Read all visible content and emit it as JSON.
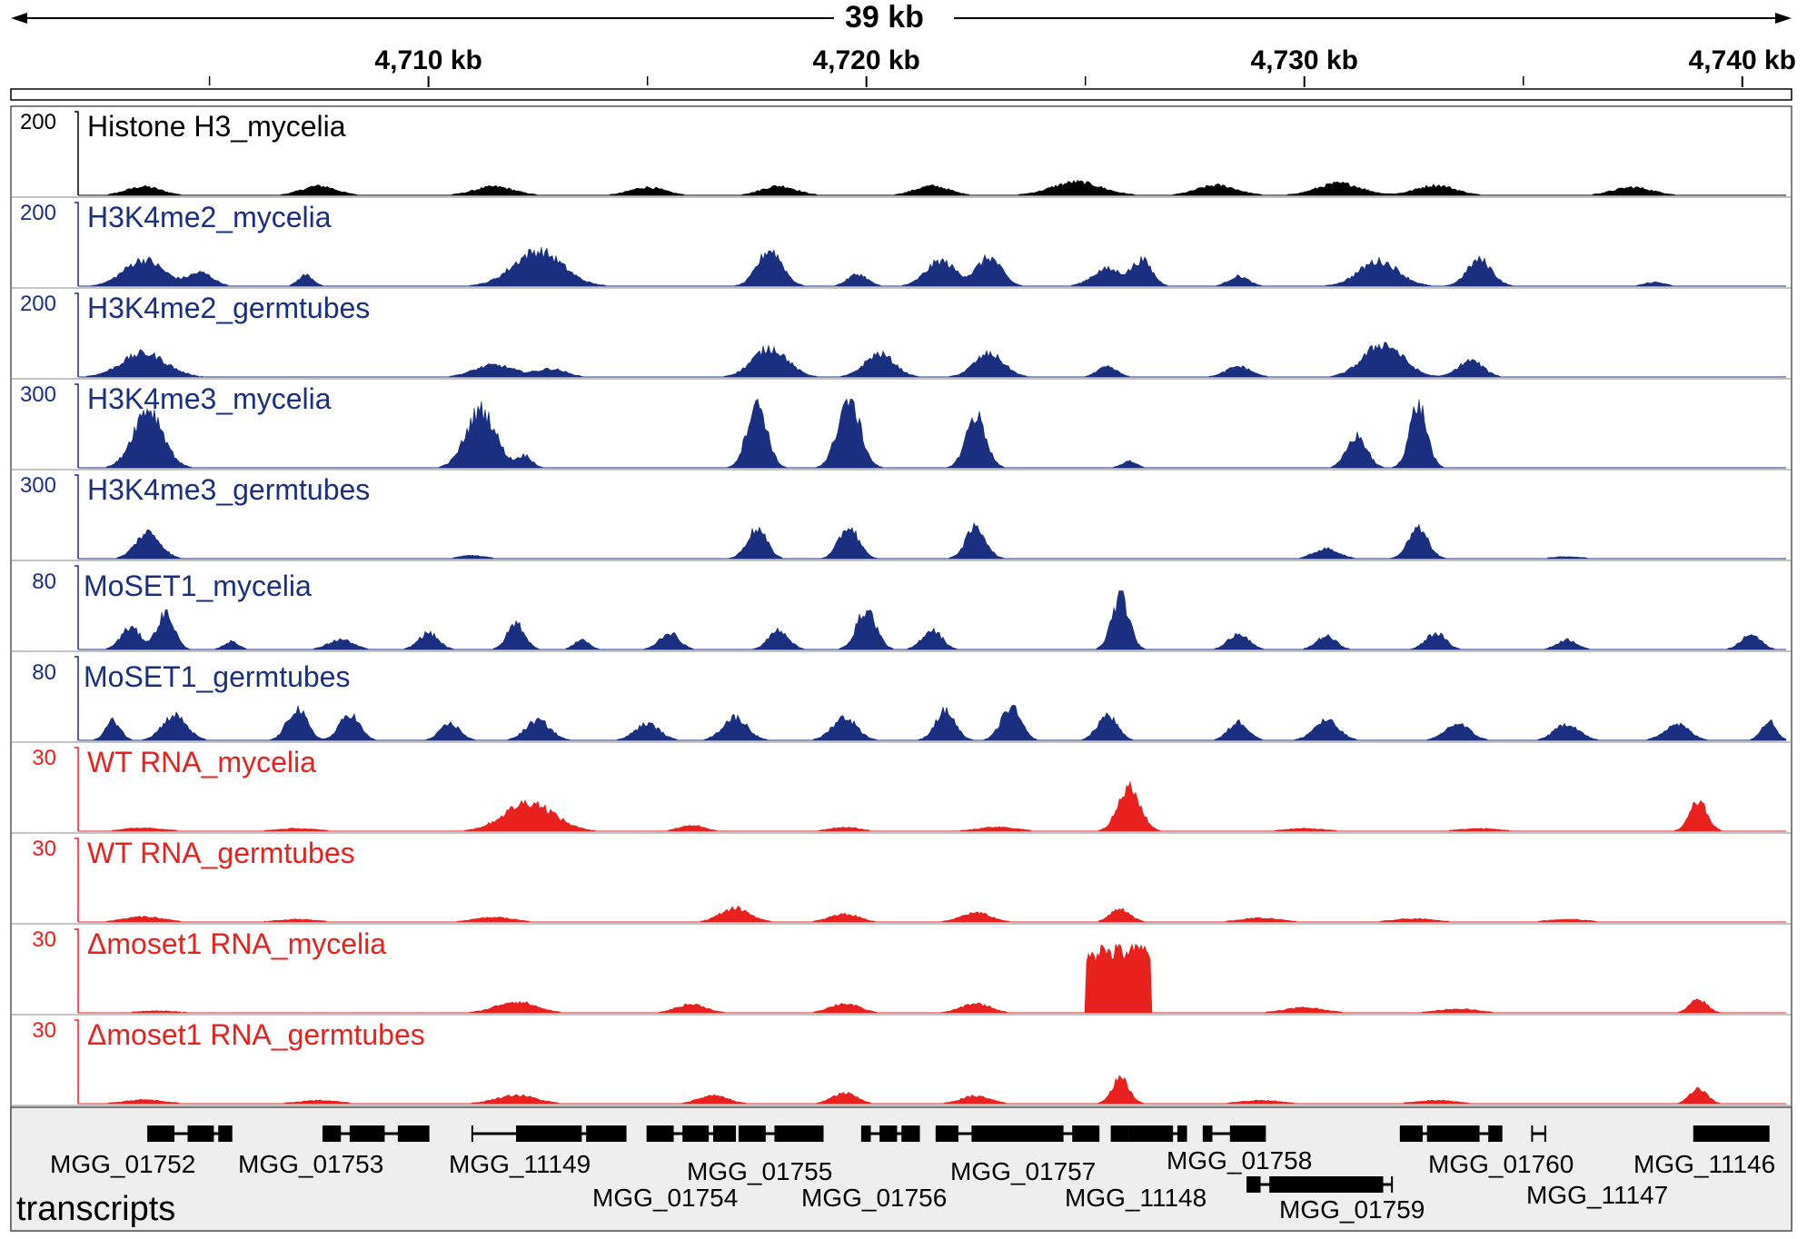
{
  "header": {
    "span_label": "39 kb",
    "ruler": {
      "start_kb": 4702,
      "end_kb": 4741,
      "labeled_ticks": [
        {
          "label": "4,710 kb",
          "pos_kb": 4710
        },
        {
          "label": "4,720 kb",
          "pos_kb": 4720
        },
        {
          "label": "4,730 kb",
          "pos_kb": 4730
        },
        {
          "label": "4,740 kb",
          "pos_kb": 4740
        }
      ],
      "minor_ticks_kb": [
        4705,
        4715,
        4725,
        4735
      ]
    }
  },
  "colors": {
    "histone": "#000000",
    "chip": "#1a2f7f",
    "rna": "#e8211f",
    "transcripts_bg": "#eeeeee",
    "gene": "#000000"
  },
  "tracks": [
    {
      "name": "Histone H3_mycelia",
      "scale": "200",
      "color_key": "histone",
      "peaks": [
        [
          4703.5,
          0.13,
          0.7
        ],
        [
          4707.5,
          0.14,
          0.7
        ],
        [
          4711.5,
          0.13,
          0.8
        ],
        [
          4715.0,
          0.12,
          0.7
        ],
        [
          4718.0,
          0.14,
          0.7
        ],
        [
          4721.5,
          0.14,
          0.7
        ],
        [
          4724.8,
          0.2,
          1.0
        ],
        [
          4728.0,
          0.15,
          0.8
        ],
        [
          4730.8,
          0.18,
          0.9
        ],
        [
          4733.0,
          0.15,
          0.8
        ],
        [
          4737.5,
          0.12,
          0.8
        ]
      ]
    },
    {
      "name": "H3K4me2_mycelia",
      "scale": "200",
      "color_key": "chip",
      "peaks": [
        [
          4703.5,
          0.4,
          0.8
        ],
        [
          4704.8,
          0.2,
          0.5
        ],
        [
          4707.2,
          0.17,
          0.3
        ],
        [
          4712.5,
          0.53,
          1.0
        ],
        [
          4717.8,
          0.55,
          0.5
        ],
        [
          4719.8,
          0.18,
          0.4
        ],
        [
          4721.7,
          0.38,
          0.6
        ],
        [
          4722.8,
          0.43,
          0.5
        ],
        [
          4725.5,
          0.26,
          0.6
        ],
        [
          4726.3,
          0.38,
          0.4
        ],
        [
          4728.5,
          0.15,
          0.4
        ],
        [
          4731.7,
          0.38,
          0.8
        ],
        [
          4734.0,
          0.4,
          0.5
        ],
        [
          4738.0,
          0.06,
          0.4
        ]
      ]
    },
    {
      "name": "H3K4me2_germtubes",
      "scale": "200",
      "color_key": "chip",
      "peaks": [
        [
          4703.5,
          0.36,
          0.9
        ],
        [
          4711.5,
          0.18,
          0.8
        ],
        [
          4712.8,
          0.12,
          0.6
        ],
        [
          4717.8,
          0.44,
          0.7
        ],
        [
          4720.3,
          0.35,
          0.6
        ],
        [
          4722.8,
          0.35,
          0.6
        ],
        [
          4725.5,
          0.15,
          0.4
        ],
        [
          4728.5,
          0.16,
          0.5
        ],
        [
          4731.8,
          0.5,
          0.8
        ],
        [
          4733.8,
          0.25,
          0.5
        ]
      ]
    },
    {
      "name": "H3K4me3_mycelia",
      "scale": "300",
      "color_key": "chip",
      "peaks": [
        [
          4703.6,
          0.9,
          0.6
        ],
        [
          4711.2,
          0.88,
          0.6
        ],
        [
          4712.2,
          0.18,
          0.3
        ],
        [
          4717.5,
          1.0,
          0.4
        ],
        [
          4719.6,
          1.05,
          0.45
        ],
        [
          4722.5,
          0.8,
          0.4
        ],
        [
          4726.0,
          0.1,
          0.3
        ],
        [
          4731.2,
          0.48,
          0.4
        ],
        [
          4732.6,
          0.96,
          0.35
        ]
      ]
    },
    {
      "name": "H3K4me3_germtubes",
      "scale": "300",
      "color_key": "chip",
      "peaks": [
        [
          4703.6,
          0.4,
          0.5
        ],
        [
          4711.0,
          0.05,
          0.5
        ],
        [
          4717.5,
          0.45,
          0.4
        ],
        [
          4719.6,
          0.48,
          0.4
        ],
        [
          4722.5,
          0.48,
          0.4
        ],
        [
          4730.5,
          0.15,
          0.5
        ],
        [
          4732.6,
          0.45,
          0.4
        ],
        [
          4736.0,
          0.03,
          0.6
        ]
      ]
    },
    {
      "name": "MoSET1_mycelia",
      "scale": "80",
      "color_key": "chip",
      "peaks": [
        [
          4703.2,
          0.33,
          0.4
        ],
        [
          4704.0,
          0.55,
          0.35
        ],
        [
          4705.5,
          0.12,
          0.3
        ],
        [
          4708.0,
          0.15,
          0.5
        ],
        [
          4710.0,
          0.25,
          0.4
        ],
        [
          4712.0,
          0.4,
          0.35
        ],
        [
          4713.5,
          0.15,
          0.3
        ],
        [
          4715.5,
          0.25,
          0.4
        ],
        [
          4718.0,
          0.3,
          0.4
        ],
        [
          4720.0,
          0.6,
          0.4
        ],
        [
          4721.5,
          0.3,
          0.4
        ],
        [
          4725.8,
          0.8,
          0.35
        ],
        [
          4728.5,
          0.25,
          0.4
        ],
        [
          4730.5,
          0.2,
          0.4
        ],
        [
          4733.0,
          0.25,
          0.4
        ],
        [
          4736.0,
          0.15,
          0.4
        ],
        [
          4740.2,
          0.22,
          0.4
        ]
      ]
    },
    {
      "name": "MoSET1_germtubes",
      "scale": "80",
      "color_key": "chip",
      "peaks": [
        [
          4702.8,
          0.3,
          0.3
        ],
        [
          4704.2,
          0.38,
          0.5
        ],
        [
          4707.0,
          0.48,
          0.4
        ],
        [
          4708.2,
          0.4,
          0.4
        ],
        [
          4710.5,
          0.25,
          0.4
        ],
        [
          4712.5,
          0.3,
          0.5
        ],
        [
          4715.0,
          0.25,
          0.5
        ],
        [
          4717.0,
          0.35,
          0.5
        ],
        [
          4719.5,
          0.35,
          0.5
        ],
        [
          4721.8,
          0.45,
          0.4
        ],
        [
          4723.3,
          0.5,
          0.4
        ],
        [
          4725.5,
          0.38,
          0.4
        ],
        [
          4728.5,
          0.28,
          0.4
        ],
        [
          4730.5,
          0.3,
          0.5
        ],
        [
          4733.5,
          0.25,
          0.5
        ],
        [
          4736.0,
          0.25,
          0.5
        ],
        [
          4738.5,
          0.25,
          0.5
        ],
        [
          4740.6,
          0.3,
          0.3
        ]
      ]
    },
    {
      "name": "WT RNA_mycelia",
      "scale": "30",
      "color_key": "rna",
      "peaks": [
        [
          4703.5,
          0.05,
          0.8
        ],
        [
          4707.0,
          0.04,
          0.8
        ],
        [
          4712.3,
          0.44,
          1.0
        ],
        [
          4716.0,
          0.09,
          0.5
        ],
        [
          4719.5,
          0.06,
          0.6
        ],
        [
          4723.0,
          0.06,
          0.8
        ],
        [
          4726.0,
          0.65,
          0.45
        ],
        [
          4730.0,
          0.04,
          0.8
        ],
        [
          4734.0,
          0.04,
          0.8
        ],
        [
          4739.0,
          0.45,
          0.35
        ]
      ]
    },
    {
      "name": "WT RNA_germtubes",
      "scale": "30",
      "color_key": "rna",
      "peaks": [
        [
          4703.5,
          0.08,
          0.8
        ],
        [
          4707.0,
          0.04,
          0.8
        ],
        [
          4711.5,
          0.07,
          0.8
        ],
        [
          4717.0,
          0.21,
          0.6
        ],
        [
          4719.5,
          0.12,
          0.6
        ],
        [
          4722.5,
          0.14,
          0.6
        ],
        [
          4725.8,
          0.2,
          0.4
        ],
        [
          4729.0,
          0.06,
          0.8
        ],
        [
          4732.5,
          0.05,
          0.8
        ],
        [
          4736.0,
          0.04,
          0.8
        ]
      ]
    },
    {
      "name": "Δmoset1 RNA_mycelia",
      "scale": "30",
      "color_key": "rna",
      "peaks": [
        [
          4703.8,
          0.03,
          0.8
        ],
        [
          4712.0,
          0.17,
          0.8
        ],
        [
          4716.0,
          0.13,
          0.6
        ],
        [
          4719.5,
          0.14,
          0.6
        ],
        [
          4722.5,
          0.14,
          0.6
        ],
        [
          4730.0,
          0.08,
          0.8
        ],
        [
          4733.5,
          0.06,
          0.8
        ],
        [
          4739.0,
          0.2,
          0.35
        ]
      ]
    },
    {
      "name": "Δmoset1 RNA_germtubes",
      "scale": "30",
      "color_key": "rna",
      "peaks": [
        [
          4703.5,
          0.06,
          0.8
        ],
        [
          4707.5,
          0.05,
          0.8
        ],
        [
          4712.0,
          0.13,
          0.8
        ],
        [
          4716.5,
          0.12,
          0.6
        ],
        [
          4719.5,
          0.16,
          0.5
        ],
        [
          4722.5,
          0.12,
          0.6
        ],
        [
          4725.8,
          0.38,
          0.35
        ],
        [
          4729.0,
          0.05,
          0.8
        ],
        [
          4733.0,
          0.05,
          0.8
        ],
        [
          4739.0,
          0.22,
          0.35
        ]
      ]
    }
  ],
  "blocks": [
    {
      "track": 9,
      "start_kb": 4725.0,
      "end_kb": 4726.5,
      "level": 0.94
    }
  ],
  "transcripts_title": "transcripts",
  "genes": [
    {
      "name": "MGG_01752",
      "start_kb": 4703.6,
      "end_kb": 4705.5,
      "row": 0,
      "exons": [
        [
          4703.6,
          4704.2
        ],
        [
          4704.5,
          4705.1
        ],
        [
          4705.2,
          4705.5
        ]
      ]
    },
    {
      "name": "MGG_01753",
      "start_kb": 4707.6,
      "end_kb": 4710.0,
      "row": 0,
      "exons": [
        [
          4707.6,
          4708.0
        ],
        [
          4708.2,
          4709.0
        ],
        [
          4709.3,
          4710.0
        ]
      ]
    },
    {
      "name": "MGG_11149",
      "start_kb": 4711.0,
      "end_kb": 4714.5,
      "row": 0,
      "exons": [
        [
          4712.0,
          4713.5
        ],
        [
          4713.6,
          4714.5
        ]
      ]
    },
    {
      "name": "MGG_01754",
      "start_kb": 4715.0,
      "end_kb": 4717.0,
      "row": 0,
      "exons": [
        [
          4715.0,
          4715.6
        ],
        [
          4715.8,
          4716.4
        ],
        [
          4716.5,
          4717.0
        ]
      ]
    },
    {
      "name": "MGG_01755",
      "start_kb": 4717.1,
      "end_kb": 4719.0,
      "row": 0,
      "exons": [
        [
          4717.1,
          4717.7
        ],
        [
          4717.9,
          4719.0
        ]
      ]
    },
    {
      "name": "MGG_01756",
      "start_kb": 4719.9,
      "end_kb": 4721.2,
      "row": 0,
      "exons": [
        [
          4719.9,
          4720.1
        ],
        [
          4720.3,
          4720.7
        ],
        [
          4720.8,
          4721.2
        ]
      ]
    },
    {
      "name": "MGG_01757",
      "start_kb": 4721.6,
      "end_kb": 4725.3,
      "row": 0,
      "exons": [
        [
          4721.6,
          4722.1
        ],
        [
          4722.4,
          4724.5
        ],
        [
          4724.7,
          4725.3
        ]
      ]
    },
    {
      "name": "MGG_11148",
      "start_kb": 4725.6,
      "end_kb": 4727.3,
      "row": 0,
      "exons": [
        [
          4725.6,
          4726.0
        ],
        [
          4726.0,
          4727.0
        ],
        [
          4727.1,
          4727.3
        ]
      ]
    },
    {
      "name": "MGG_01758",
      "start_kb": 4727.7,
      "end_kb": 4729.1,
      "row": 0,
      "exons": [
        [
          4727.7,
          4727.9
        ],
        [
          4728.3,
          4729.1
        ]
      ]
    },
    {
      "name": "MGG_01759",
      "start_kb": 4728.7,
      "end_kb": 4732.0,
      "row": 1,
      "exons": [
        [
          4728.7,
          4729.0
        ],
        [
          4729.2,
          4731.8
        ]
      ]
    },
    {
      "name": "MGG_01760",
      "start_kb": 4732.2,
      "end_kb": 4734.5,
      "row": 0,
      "exons": [
        [
          4732.2,
          4732.7
        ],
        [
          4732.8,
          4734.0
        ],
        [
          4734.2,
          4734.5
        ]
      ]
    },
    {
      "name": "MGG_11147",
      "start_kb": 4735.2,
      "end_kb": 4735.5,
      "row": 0,
      "exons": []
    },
    {
      "name": "MGG_11146",
      "start_kb": 4738.9,
      "end_kb": 4740.6,
      "row": 0,
      "exons": [
        [
          4738.9,
          4739.6
        ],
        [
          4739.6,
          4740.6
        ]
      ]
    }
  ]
}
